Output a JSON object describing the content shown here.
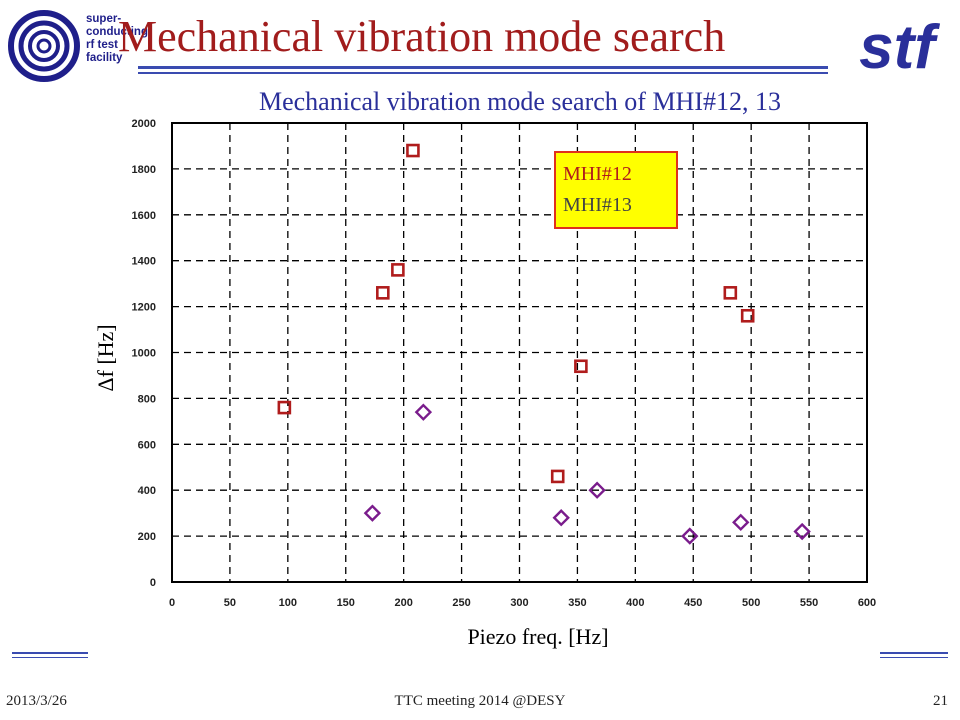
{
  "header": {
    "title": "Mechanical vibration mode search",
    "logo_left_text": "super-\nconducting\nrf test\nfacility",
    "logo_right_text": "stf"
  },
  "footer": {
    "date": "2013/3/26",
    "meeting": "TTC meeting 2014 @DESY",
    "page": "21"
  },
  "colors": {
    "title": "#a11c1c",
    "rule": "#3a4bb0",
    "series_mhi12": "#b01c1c",
    "series_mhi13": "#7a1c8c",
    "legend_bg": "#ffff00",
    "legend_border": "#e0301c"
  },
  "chart_data": {
    "type": "scatter",
    "title": "Mechanical vibration mode search of MHI#12, 13",
    "xlabel": "Piezo freq. [Hz]",
    "ylabel": "Δf [Hz]",
    "xlim": [
      0,
      600
    ],
    "ylim": [
      0,
      2000
    ],
    "xticks": [
      0,
      50,
      100,
      150,
      200,
      250,
      300,
      350,
      400,
      450,
      500,
      550,
      600
    ],
    "yticks": [
      0,
      200,
      400,
      600,
      800,
      1000,
      1200,
      1400,
      1600,
      1800,
      2000
    ],
    "grid": true,
    "legend_position": "top-right",
    "series": [
      {
        "name": "MHI#12",
        "marker": "square",
        "points": [
          {
            "x": 97,
            "y": 760
          },
          {
            "x": 182,
            "y": 1260
          },
          {
            "x": 195,
            "y": 1360
          },
          {
            "x": 208,
            "y": 1880
          },
          {
            "x": 333,
            "y": 460
          },
          {
            "x": 353,
            "y": 940
          },
          {
            "x": 482,
            "y": 1260
          },
          {
            "x": 497,
            "y": 1160
          }
        ]
      },
      {
        "name": "MHI#13",
        "marker": "diamond",
        "points": [
          {
            "x": 173,
            "y": 300
          },
          {
            "x": 217,
            "y": 740
          },
          {
            "x": 336,
            "y": 280
          },
          {
            "x": 367,
            "y": 400
          },
          {
            "x": 447,
            "y": 200
          },
          {
            "x": 491,
            "y": 260
          },
          {
            "x": 544,
            "y": 220
          }
        ]
      }
    ]
  }
}
